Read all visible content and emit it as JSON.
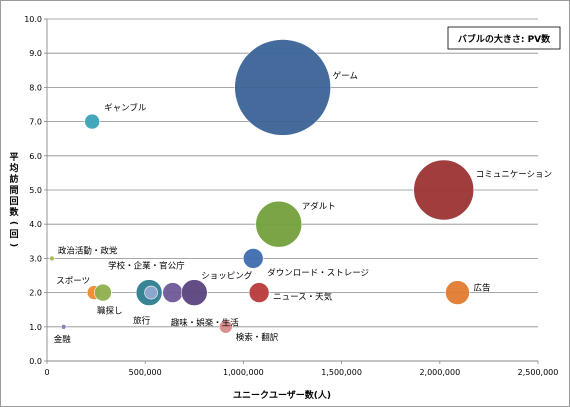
{
  "chart_data": {
    "type": "scatter",
    "subtype": "bubble",
    "size_note": "バブルの大きさ: PV数",
    "xlabel": "ユニークユーザー数(人)",
    "ylabel": "平均訪問回数(回)",
    "xlim": [
      0,
      2500000
    ],
    "ylim": [
      0.0,
      10.0
    ],
    "x_ticks": [
      0,
      500000,
      1000000,
      1500000,
      2000000,
      2500000
    ],
    "x_tick_labels": [
      "0",
      "500,000",
      "1,000,000",
      "1,500,000",
      "2,000,000",
      "2,500,000"
    ],
    "y_ticks": [
      0,
      1,
      2,
      3,
      4,
      5,
      6,
      7,
      8,
      9,
      10
    ],
    "y_tick_labels": [
      "0.0",
      "1.0",
      "2.0",
      "3.0",
      "4.0",
      "5.0",
      "6.0",
      "7.0",
      "8.0",
      "9.0",
      "10.0"
    ],
    "grid": true,
    "points": [
      {
        "name": "ゲーム",
        "x": 1200000,
        "y": 8.0,
        "r": 48,
        "color": "#3a6396"
      },
      {
        "name": "コミュニケーション",
        "x": 2020000,
        "y": 5.0,
        "r": 30,
        "color": "#9b3333"
      },
      {
        "name": "アダルト",
        "x": 1180000,
        "y": 4.0,
        "r": 23,
        "color": "#73a03b"
      },
      {
        "name": "ギャンブル",
        "x": 230000,
        "y": 7.0,
        "r": 7.5,
        "color": "#3aa3b8"
      },
      {
        "name": "ダウンロード・ストレージ",
        "x": 1050000,
        "y": 3.0,
        "r": 10,
        "color": "#3e6db0"
      },
      {
        "name": "政治活動・政党",
        "x": 25000,
        "y": 3.0,
        "r": 2.5,
        "color": "#a0c050"
      },
      {
        "name": "スポーツ",
        "x": 240000,
        "y": 2.0,
        "r": 7,
        "color": "#ef8a2e"
      },
      {
        "name": "職探し",
        "x": 285000,
        "y": 2.0,
        "r": 8.5,
        "color": "#8eb04e"
      },
      {
        "name": "学校・企業・官公庁",
        "x": 520000,
        "y": 2.0,
        "r": 13,
        "color": "#2d7d8e"
      },
      {
        "name": "旅行",
        "x": 530000,
        "y": 2.0,
        "r": 6.5,
        "color": "#90a8d0"
      },
      {
        "name": "趣味・娯楽・生活",
        "x": 640000,
        "y": 2.0,
        "r": 10,
        "color": "#6d5898"
      },
      {
        "name": "ショッピング",
        "x": 750000,
        "y": 2.0,
        "r": 13,
        "color": "#5a447e"
      },
      {
        "name": "ニュース・天気",
        "x": 1080000,
        "y": 2.0,
        "r": 10,
        "color": "#b83a3a"
      },
      {
        "name": "広告",
        "x": 2090000,
        "y": 2.0,
        "r": 12,
        "color": "#e07b30"
      },
      {
        "name": "検索・翻訳",
        "x": 910000,
        "y": 1.0,
        "r": 6.5,
        "color": "#d98a8a"
      },
      {
        "name": "金融",
        "x": 85000,
        "y": 1.0,
        "r": 2.5,
        "color": "#8a7ab8"
      }
    ]
  }
}
